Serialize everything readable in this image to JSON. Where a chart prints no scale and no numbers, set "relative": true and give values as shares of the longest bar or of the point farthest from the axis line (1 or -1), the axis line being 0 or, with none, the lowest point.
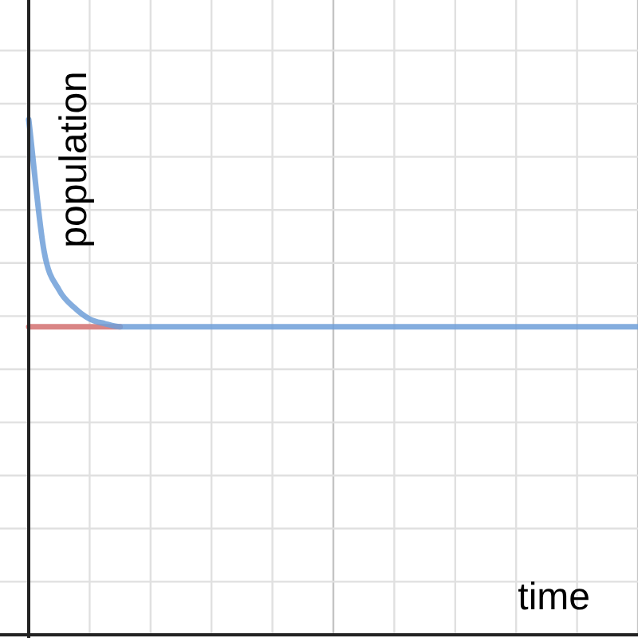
{
  "chart_data": {
    "type": "line",
    "relative": true,
    "xlabel": "time",
    "ylabel": "population",
    "grid": true,
    "legend": false,
    "marker": "none",
    "categories": [
      null,
      null,
      null,
      null,
      null,
      null,
      null,
      null,
      null,
      null,
      null,
      null,
      null,
      null,
      null,
      null,
      null,
      null,
      null,
      null,
      null,
      null,
      null,
      null,
      null,
      null,
      null,
      null,
      null,
      null,
      null,
      null,
      null,
      null,
      null,
      null,
      null,
      null,
      null,
      null,
      null
    ],
    "series": [
      {
        "color": "#d98585",
        "values": [
          0.598,
          0.598,
          0.598,
          0.598,
          0.598,
          0.598,
          0.598,
          null,
          null,
          null,
          null,
          null,
          null,
          null,
          null,
          null,
          null,
          null,
          null,
          null,
          null,
          null,
          null,
          null,
          null,
          null,
          null,
          null,
          null,
          null,
          null,
          null,
          null,
          null,
          null,
          null,
          null,
          null,
          null,
          null,
          null
        ]
      },
      {
        "color": "#6f9fd8",
        "values": [
          1,
          0.746,
          0.669,
          0.635,
          0.613,
          0.604,
          0.598,
          0.598,
          0.598,
          0.598,
          0.598,
          0.598,
          0.598,
          0.598,
          0.598,
          0.598,
          0.598,
          0.598,
          0.598,
          0.598,
          0.598,
          0.598,
          0.598,
          0.598,
          0.598,
          0.598,
          0.598,
          0.598,
          0.598,
          0.598,
          0.598,
          0.598,
          0.598,
          0.598,
          0.598,
          0.598,
          0.598,
          0.598,
          0.598,
          0.598,
          0.598
        ]
      }
    ]
  }
}
